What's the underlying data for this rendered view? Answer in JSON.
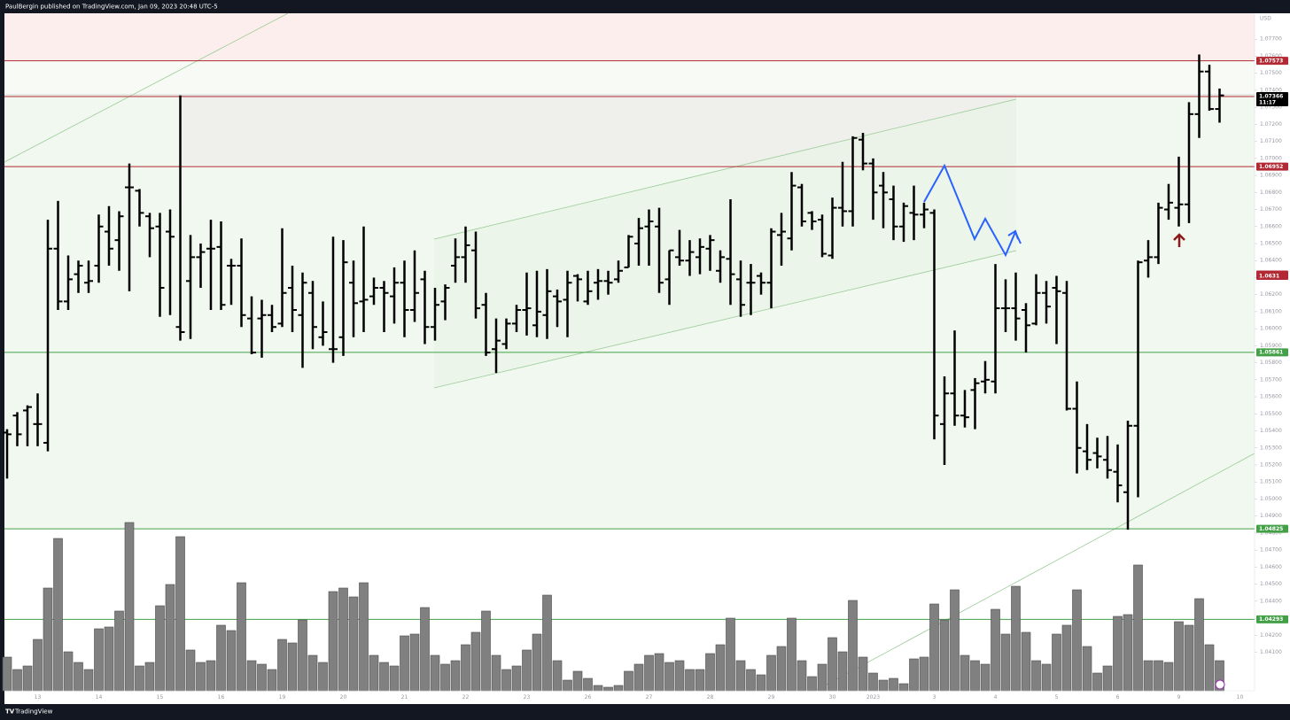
{
  "header": "PaulBergin published on TradingView.com, Jan 09, 2023 20:48 UTC-5",
  "footer": "TradingView",
  "chart_data": {
    "type": "ohlc",
    "currency": "USD",
    "categories": [
      null,
      null,
      null,
      "13",
      null,
      null,
      null,
      null,
      null,
      "14",
      null,
      null,
      null,
      null,
      null,
      "15",
      null,
      null,
      null,
      null,
      null,
      "16",
      null,
      null,
      null,
      null,
      null,
      "19",
      null,
      null,
      null,
      null,
      null,
      "20",
      null,
      null,
      null,
      null,
      null,
      "21",
      null,
      null,
      null,
      null,
      null,
      "22",
      null,
      null,
      null,
      null,
      null,
      "23",
      null,
      null,
      null,
      null,
      null,
      "26",
      null,
      null,
      null,
      null,
      null,
      "27",
      null,
      null,
      null,
      null,
      null,
      "28",
      null,
      null,
      null,
      null,
      null,
      "29",
      null,
      null,
      null,
      null,
      null,
      "30",
      null,
      null,
      null,
      "2023",
      null,
      null,
      null,
      null,
      null,
      "3",
      null,
      null,
      null,
      null,
      null,
      "4",
      null,
      null,
      null,
      null,
      null,
      "5",
      null,
      null,
      null,
      null,
      null,
      "6",
      null,
      null,
      null,
      null,
      null,
      "9",
      null,
      null,
      null,
      null,
      null,
      "10"
    ],
    "open": [
      1.0539,
      1.0549,
      1.0552,
      1.0544,
      1.0533,
      1.0647,
      1.0616,
      1.0632,
      1.0627,
      1.0637,
      1.0657,
      1.0652,
      1.0683,
      1.0681,
      1.0666,
      1.066,
      1.0657,
      1.0601,
      1.0628,
      1.0642,
      1.0647,
      1.0648,
      1.0637,
      1.0637,
      1.0606,
      1.0606,
      1.0608,
      1.0603,
      1.0624,
      1.0608,
      1.0621,
      1.0595,
      1.0588,
      1.0595,
      1.0627,
      1.0616,
      1.0619,
      1.0624,
      1.0619,
      1.0627,
      1.0611,
      1.0629,
      1.0601,
      1.0616,
      1.0637,
      1.0642,
      1.0646,
      1.0614,
      1.0588,
      1.0591,
      1.0603,
      1.0611,
      1.0602,
      1.0608,
      1.0619,
      1.0617,
      1.0631,
      1.0616,
      1.0627,
      1.0628,
      1.0629,
      1.0636,
      1.065,
      1.066,
      1.066,
      1.0629,
      1.0642,
      1.064,
      1.0642,
      1.0647,
      1.0634,
      1.0641,
      1.0629,
      1.0627,
      1.0631,
      1.0627,
      1.0655,
      1.0653,
      1.0683,
      1.0668,
      1.0664,
      1.0643,
      1.0671,
      1.0669,
      1.0711,
      1.0697,
      1.0684,
      1.0676,
      1.066,
      1.0668,
      1.0667,
      1.0668,
      1.0544,
      1.0562,
      1.0549,
      1.0564,
      1.0569,
      1.0569,
      1.0612,
      1.0612,
      1.0611,
      1.0603,
      1.0621,
      1.0624,
      1.0621,
      1.0553,
      1.0528,
      1.0527,
      1.0523,
      1.0516,
      1.0504,
      1.0543,
      1.064,
      1.0642,
      1.067,
      1.0671,
      1.0673,
      1.0726,
      1.0751,
      1.0729,
      null,
      null
    ],
    "high": [
      1.0541,
      1.0551,
      1.0555,
      1.0562,
      1.0664,
      1.0675,
      1.0643,
      1.064,
      1.064,
      1.0667,
      1.0672,
      1.0669,
      1.0697,
      1.0682,
      1.0668,
      1.0668,
      1.067,
      1.0737,
      1.0655,
      1.065,
      1.0664,
      1.0663,
      1.0641,
      1.0653,
      1.0619,
      1.0617,
      1.0614,
      1.0659,
      1.0637,
      1.0633,
      1.0628,
      1.0616,
      1.0654,
      1.0652,
      1.064,
      1.066,
      1.063,
      1.0628,
      1.0636,
      1.064,
      1.0646,
      1.0634,
      1.0624,
      1.0626,
      1.0653,
      1.066,
      1.0657,
      1.0621,
      1.0606,
      1.0606,
      1.0614,
      1.0633,
      1.0634,
      1.0635,
      1.0623,
      1.0634,
      1.0632,
      1.0634,
      1.0635,
      1.0634,
      1.064,
      1.0655,
      1.0665,
      1.067,
      1.0671,
      1.0646,
      1.0658,
      1.0652,
      1.0653,
      1.0655,
      1.0646,
      1.0676,
      1.064,
      1.0638,
      1.0633,
      1.0659,
      1.0668,
      1.0692,
      1.0685,
      1.0669,
      1.0667,
      1.0677,
      1.0698,
      1.0713,
      1.0715,
      1.07,
      1.0692,
      1.0684,
      1.0674,
      1.0684,
      1.0674,
      1.067,
      1.0572,
      1.0599,
      1.0564,
      1.0571,
      1.0581,
      1.0638,
      1.0629,
      1.0633,
      1.0615,
      1.0632,
      1.0628,
      1.0631,
      1.0628,
      1.0569,
      1.0544,
      1.0536,
      1.0537,
      1.0532,
      1.0546,
      1.064,
      1.0652,
      1.0674,
      1.0685,
      1.0701,
      1.0733,
      1.0761,
      1.0755,
      1.0741,
      null,
      null
    ],
    "low": [
      1.0512,
      1.0531,
      1.0531,
      1.0531,
      1.0528,
      1.0611,
      1.0611,
      1.0621,
      1.0621,
      1.0627,
      1.0637,
      1.0634,
      1.0622,
      1.066,
      1.0642,
      1.0607,
      1.0608,
      1.0593,
      1.0594,
      1.0624,
      1.0611,
      1.0611,
      1.0614,
      1.0601,
      1.0585,
      1.0583,
      1.0598,
      1.0601,
      1.0598,
      1.0577,
      1.0588,
      1.059,
      1.058,
      1.0584,
      1.0595,
      1.0598,
      1.0614,
      1.0598,
      1.0603,
      1.0595,
      1.0604,
      1.0591,
      1.0593,
      1.0605,
      1.0627,
      1.0627,
      1.0606,
      1.0584,
      1.0574,
      1.0588,
      1.0598,
      1.0596,
      1.0595,
      1.0594,
      1.0601,
      1.0595,
      1.0616,
      1.0614,
      1.0617,
      1.062,
      1.0627,
      1.0636,
      1.0637,
      1.0637,
      1.0621,
      1.0614,
      1.0637,
      1.0631,
      1.0632,
      1.0634,
      1.0627,
      1.0614,
      1.0607,
      1.0608,
      1.062,
      1.0612,
      1.0637,
      1.0646,
      1.066,
      1.0658,
      1.0642,
      1.0641,
      1.066,
      1.066,
      1.0693,
      1.0664,
      1.0659,
      1.0652,
      1.0651,
      1.0652,
      1.0659,
      1.0535,
      1.052,
      1.0543,
      1.0542,
      1.0541,
      1.0562,
      1.0562,
      1.0598,
      1.0593,
      1.0586,
      1.0602,
      1.0603,
      1.0591,
      1.0552,
      1.0515,
      1.0517,
      1.0518,
      1.0512,
      1.0498,
      1.0482,
      1.0501,
      1.063,
      1.0638,
      1.0664,
      1.066,
      1.0662,
      1.0712,
      1.0728,
      1.0721,
      null,
      null
    ],
    "close": [
      1.0538,
      1.0538,
      1.0554,
      1.0544,
      1.0647,
      1.0616,
      1.0629,
      1.0637,
      1.0628,
      1.066,
      1.0647,
      1.0666,
      1.0683,
      1.0668,
      1.0659,
      1.0624,
      1.0654,
      1.0598,
      1.0642,
      1.0645,
      1.0647,
      1.0614,
      1.0637,
      1.0608,
      1.0586,
      1.0608,
      1.0601,
      1.0621,
      1.0611,
      1.0627,
      1.0601,
      1.0598,
      1.0588,
      1.0639,
      1.0615,
      1.0617,
      1.0624,
      1.0621,
      1.0627,
      1.0611,
      1.0621,
      1.0601,
      1.0614,
      1.0624,
      1.0642,
      1.0649,
      1.0612,
      1.0586,
      1.0593,
      1.0603,
      1.0611,
      1.0612,
      1.061,
      1.0622,
      1.0616,
      1.0627,
      1.0629,
      1.0622,
      1.0628,
      1.0627,
      1.0634,
      1.0654,
      1.0659,
      1.0663,
      1.0627,
      1.0646,
      1.064,
      1.0645,
      1.0648,
      1.0652,
      1.0642,
      1.0632,
      1.0614,
      1.0627,
      1.0627,
      1.0657,
      1.0657,
      1.0684,
      1.0663,
      1.0663,
      1.0644,
      1.0671,
      1.0669,
      1.0712,
      1.0697,
      1.068,
      1.068,
      1.066,
      1.0672,
      1.0667,
      1.067,
      1.0549,
      1.0562,
      1.0549,
      1.0548,
      1.0568,
      1.057,
      1.0612,
      1.0612,
      1.0606,
      1.0602,
      1.0621,
      1.0613,
      1.0622,
      1.0553,
      1.053,
      1.0523,
      1.0525,
      1.0517,
      1.0508,
      1.0543,
      1.0639,
      1.0642,
      1.0671,
      1.0674,
      1.0673,
      1.0726,
      1.0751,
      1.0729,
      1.0737,
      null,
      null
    ],
    "volume": [
      19,
      12,
      14,
      29,
      58,
      86,
      22,
      16,
      12,
      35,
      36,
      45,
      95,
      14,
      16,
      48,
      60,
      87,
      23,
      16,
      17,
      37,
      34,
      61,
      17,
      15,
      12,
      29,
      27,
      40,
      20,
      16,
      56,
      58,
      53,
      61,
      20,
      16,
      14,
      31,
      32,
      47,
      20,
      15,
      17,
      26,
      33,
      45,
      20,
      12,
      14,
      23,
      32,
      54,
      17,
      6,
      11,
      7,
      3,
      2,
      3,
      11,
      15,
      20,
      21,
      16,
      17,
      12,
      12,
      21,
      26,
      41,
      17,
      12,
      9,
      20,
      25,
      41,
      17,
      8,
      15,
      30,
      22,
      51,
      19,
      10,
      6,
      7,
      4,
      18,
      19,
      49,
      40,
      57,
      20,
      17,
      15,
      46,
      32,
      59,
      33,
      17,
      15,
      32,
      37,
      57,
      25,
      10,
      14,
      42,
      43,
      71,
      17,
      17,
      16,
      39,
      37,
      52,
      26,
      17,
      null,
      null
    ],
    "color": "#000000",
    "volume_color": "#808080",
    "ylim": [
      1.03874,
      1.07852
    ],
    "y2lim": [
      0,
      100
    ],
    "yticks": [
      {
        "value": 1.041,
        "label": "1.04100"
      },
      {
        "value": 1.042,
        "label": "1.04200"
      },
      {
        "value": 1.043,
        "label": "1.04300"
      },
      {
        "value": 1.044,
        "label": "1.04400"
      },
      {
        "value": 1.045,
        "label": "1.04500"
      },
      {
        "value": 1.046,
        "label": "1.04600"
      },
      {
        "value": 1.047,
        "label": "1.04700"
      },
      {
        "value": 1.048,
        "label": "1.04800"
      },
      {
        "value": 1.049,
        "label": "1.04900"
      },
      {
        "value": 1.05,
        "label": "1.05000"
      },
      {
        "value": 1.051,
        "label": "1.05100"
      },
      {
        "value": 1.052,
        "label": "1.05200"
      },
      {
        "value": 1.053,
        "label": "1.05300"
      },
      {
        "value": 1.054,
        "label": "1.05400"
      },
      {
        "value": 1.055,
        "label": "1.05500"
      },
      {
        "value": 1.056,
        "label": "1.05600"
      },
      {
        "value": 1.057,
        "label": "1.05700"
      },
      {
        "value": 1.058,
        "label": "1.05800"
      },
      {
        "value": 1.059,
        "label": "1.05900"
      },
      {
        "value": 1.06,
        "label": "1.06000"
      },
      {
        "value": 1.061,
        "label": "1.06100"
      },
      {
        "value": 1.062,
        "label": "1.06200"
      },
      {
        "value": 1.063,
        "label": "1.06300"
      },
      {
        "value": 1.064,
        "label": "1.06400"
      },
      {
        "value": 1.065,
        "label": "1.06500"
      },
      {
        "value": 1.066,
        "label": "1.06600"
      },
      {
        "value": 1.067,
        "label": "1.06700"
      },
      {
        "value": 1.068,
        "label": "1.06800"
      },
      {
        "value": 1.069,
        "label": "1.06900"
      },
      {
        "value": 1.07,
        "label": "1.07000"
      },
      {
        "value": 1.071,
        "label": "1.07100"
      },
      {
        "value": 1.072,
        "label": "1.07200"
      },
      {
        "value": 1.073,
        "label": "1.07300"
      },
      {
        "value": 1.074,
        "label": "1.07400"
      },
      {
        "value": 1.075,
        "label": "1.07500"
      },
      {
        "value": 1.076,
        "label": "1.07600"
      },
      {
        "value": 1.077,
        "label": "1.07700"
      }
    ],
    "price_labels": [
      {
        "value": 1.07573,
        "color": "#b22833",
        "line": true
      },
      {
        "value": 1.07363,
        "color": "#b22833",
        "line": true
      },
      {
        "value": 1.06952,
        "color": "#b22833",
        "line": true
      },
      {
        "value": 1.06318,
        "color": "#b22833",
        "line": false
      },
      {
        "value": 1.0631,
        "color": "#b22833",
        "line": false
      },
      {
        "value": 1.05861,
        "color": "#43a047",
        "line": true
      },
      {
        "value": 1.04825,
        "color": "#43a047",
        "line": true
      },
      {
        "value": 1.04293,
        "color": "#43a047",
        "line": true
      }
    ],
    "last_price": {
      "value": 1.07366,
      "countdown": "11:17",
      "color": "#000000"
    }
  }
}
